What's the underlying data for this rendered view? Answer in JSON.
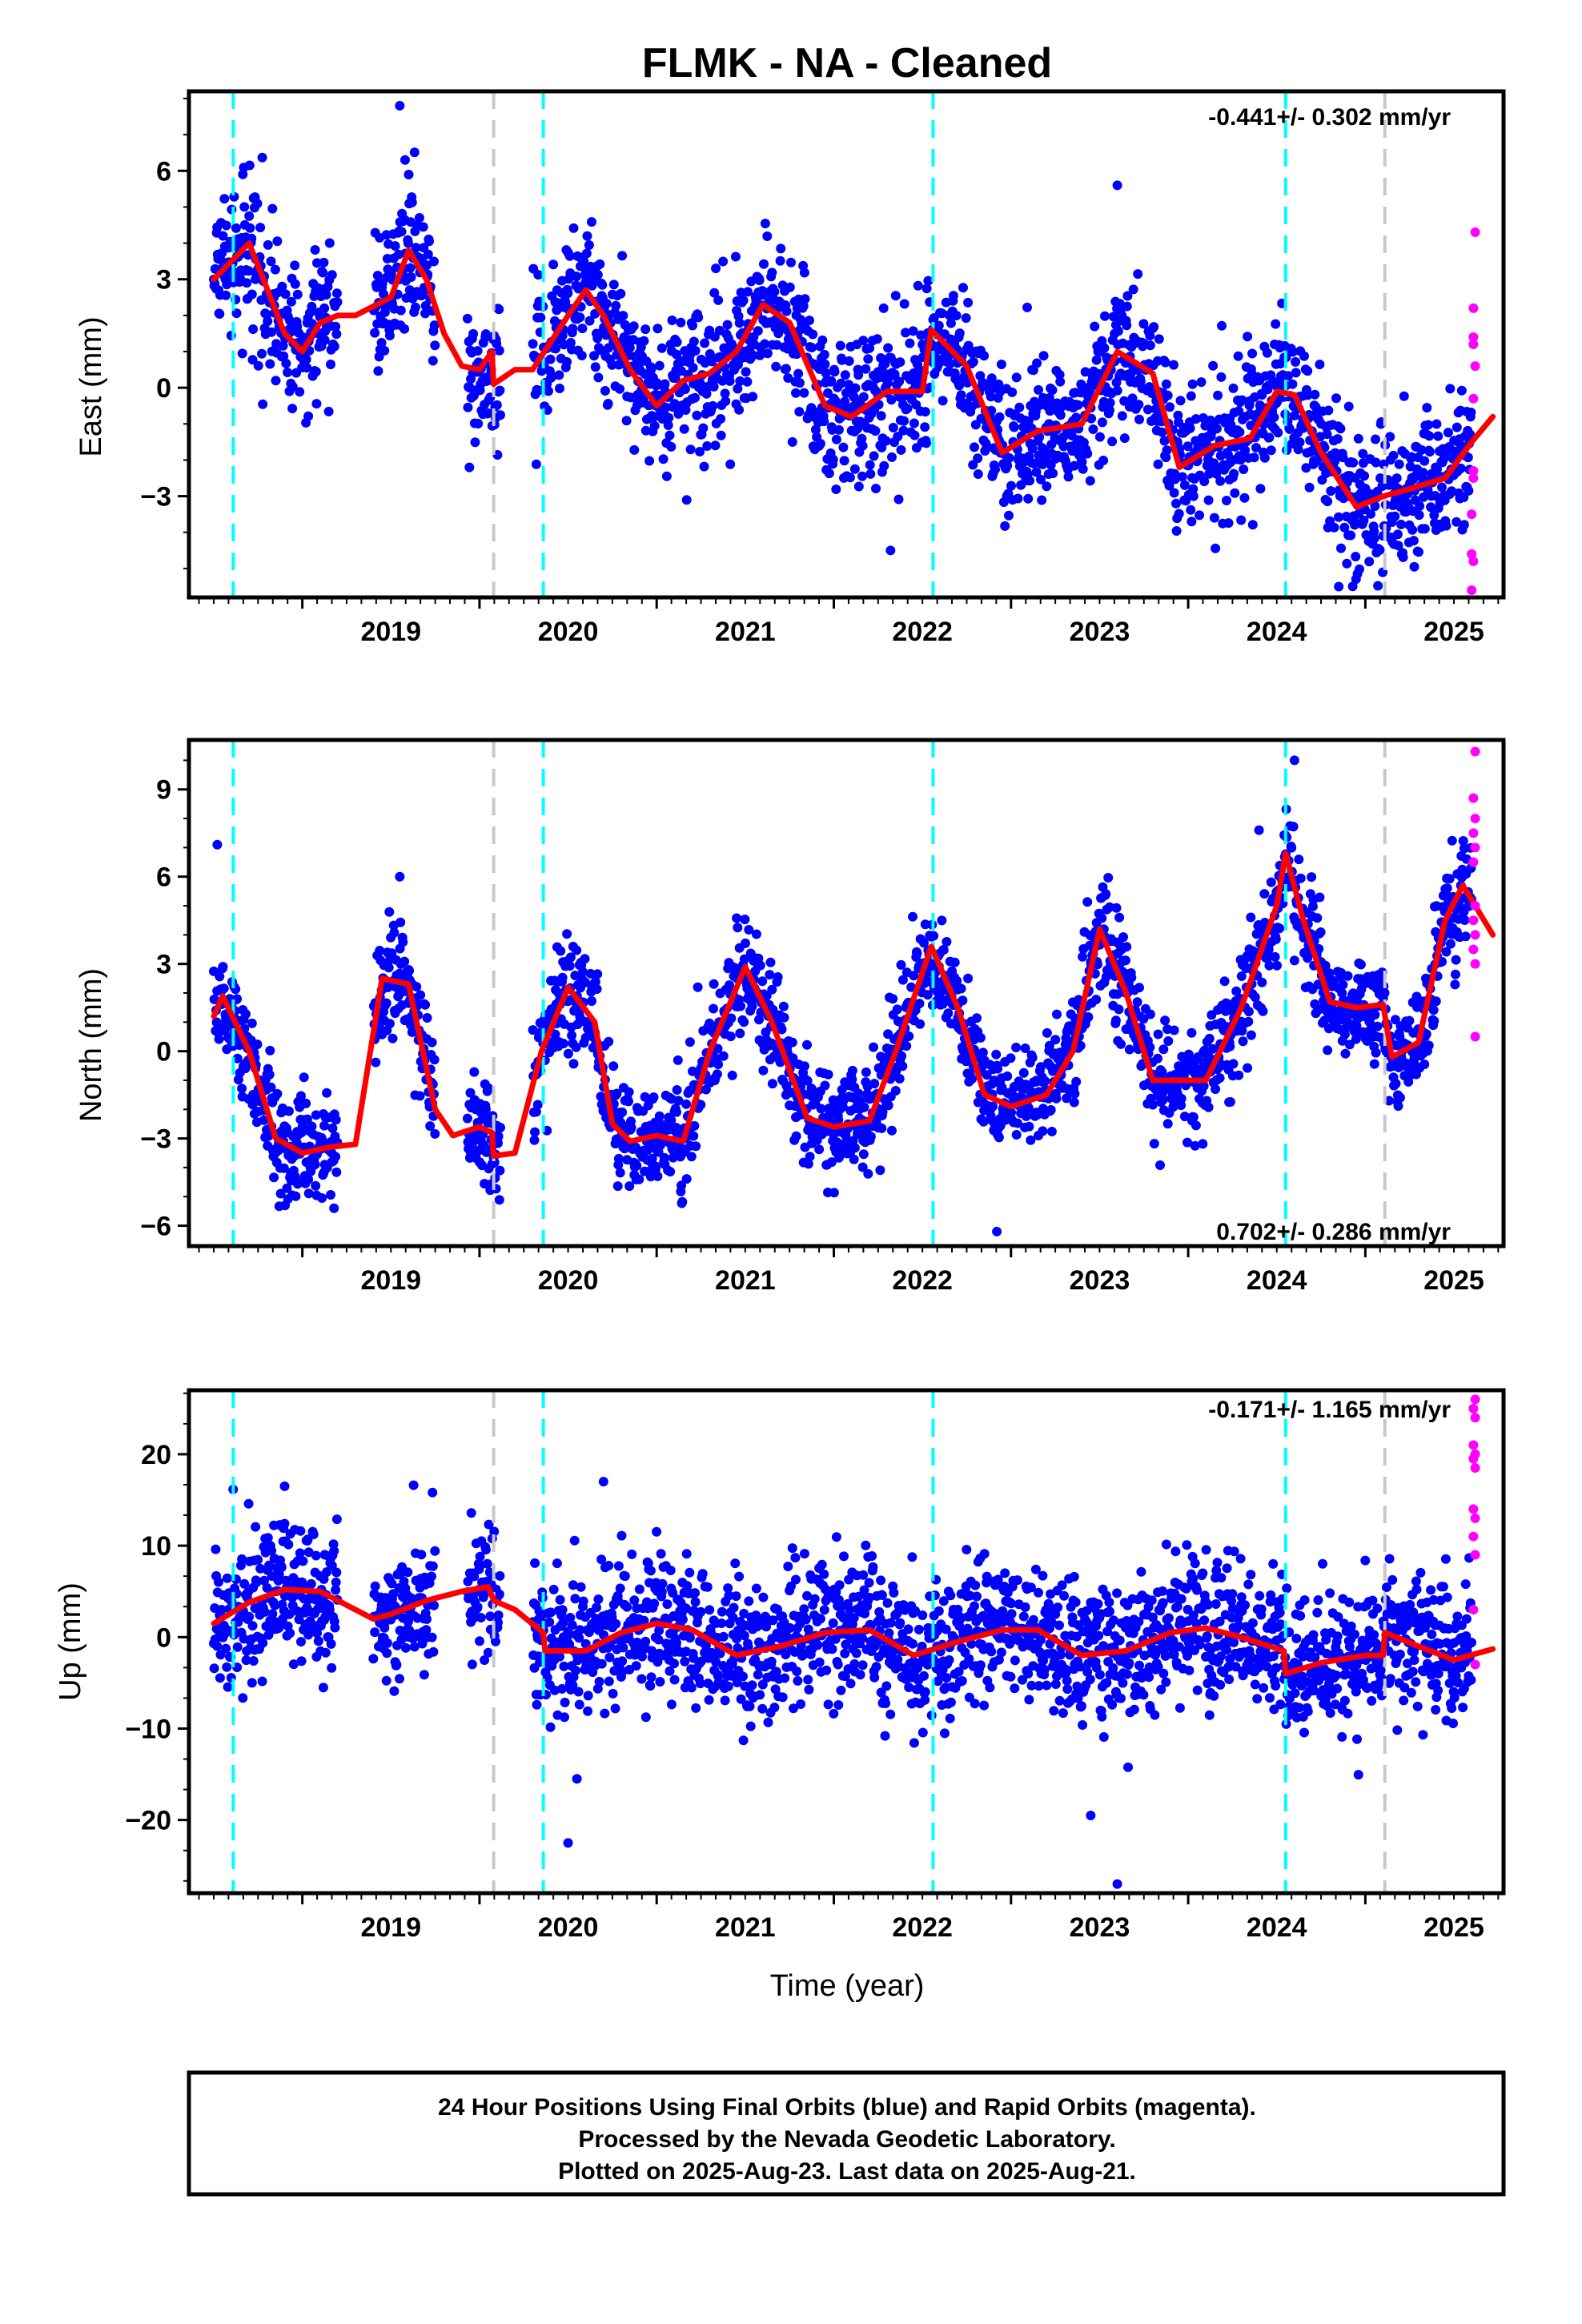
{
  "title": "FLMK  - NA - Cleaned",
  "x_axis_label": "Time (year)",
  "year_ticks": [
    "2019",
    "2020",
    "2021",
    "2022",
    "2023",
    "2024",
    "2025"
  ],
  "footer": {
    "line1": "24 Hour Positions Using Final Orbits (blue) and Rapid Orbits (magenta).",
    "line2": "Processed by the Nevada Geodetic Laboratory.",
    "line3": "Plotted on 2025-Aug-23. Last data on 2025-Aug-21."
  },
  "colors": {
    "final_orbits": "#0000ff",
    "rapid_orbits": "#ff00ff",
    "model_fit": "#ff0000",
    "equipment_change": "#00ffff",
    "earthquake_offset": "#c8c8c8",
    "frame": "#000000"
  },
  "chart_data": [
    {
      "type": "scatter",
      "id": "east",
      "ylabel": "East (mm)",
      "rate_text": "-0.441+/- 0.302 mm/yr",
      "rate_position": "top-right",
      "xlim": [
        2018.36,
        2025.78
      ],
      "ylim": [
        -5.8,
        8.2
      ],
      "yticks": [
        -3,
        0,
        3,
        6
      ],
      "equipment_change_lines": [
        2018.61,
        2020.36,
        2022.56,
        2024.55
      ],
      "other_offset_lines": [
        2020.08,
        2025.11
      ],
      "model_fit": {
        "x": [
          2018.5,
          2018.7,
          2018.9,
          2019.0,
          2019.1,
          2019.2,
          2019.3,
          2019.5,
          2019.6,
          2019.7,
          2019.8,
          2019.9,
          2020.0,
          2020.07,
          2020.08,
          2020.2,
          2020.3,
          2020.5,
          2020.6,
          2020.7,
          2020.85,
          2021.0,
          2021.15,
          2021.3,
          2021.45,
          2021.6,
          2021.75,
          2021.95,
          2022.1,
          2022.3,
          2022.5,
          2022.55,
          2022.75,
          2022.95,
          2023.15,
          2023.4,
          2023.6,
          2023.8,
          2023.95,
          2024.15,
          2024.35,
          2024.5,
          2024.6,
          2024.75,
          2024.95,
          2025.1,
          2025.25,
          2025.45,
          2025.6,
          2025.72
        ],
        "y": [
          3.0,
          4.0,
          1.5,
          1.0,
          1.8,
          2.0,
          2.0,
          2.5,
          3.8,
          3.0,
          1.5,
          0.6,
          0.5,
          1.0,
          0.1,
          0.5,
          0.5,
          2.0,
          2.7,
          2.0,
          0.5,
          -0.5,
          0.2,
          0.4,
          1.0,
          2.3,
          1.8,
          -0.5,
          -0.8,
          -0.1,
          -0.1,
          1.6,
          0.6,
          -1.8,
          -1.2,
          -1.0,
          1.0,
          0.4,
          -2.2,
          -1.6,
          -1.4,
          -0.1,
          -0.2,
          -1.8,
          -3.3,
          -3.0,
          -2.8,
          -2.5,
          -1.5,
          -0.8
        ]
      },
      "final_orbit_outliers": [
        {
          "x": 2019.55,
          "y": 7.8
        },
        {
          "x": 2019.58,
          "y": 6.3
        },
        {
          "x": 2022.32,
          "y": -4.5
        },
        {
          "x": 2024.85,
          "y": -5.5
        },
        {
          "x": 2023.6,
          "y": 5.6
        }
      ],
      "rapid_orbit_points": [
        {
          "x": 2025.62,
          "y": 4.3
        },
        {
          "x": 2025.61,
          "y": 2.2
        },
        {
          "x": 2025.61,
          "y": 1.4
        },
        {
          "x": 2025.61,
          "y": 1.2
        },
        {
          "x": 2025.62,
          "y": 0.6
        },
        {
          "x": 2025.61,
          "y": -0.3
        },
        {
          "x": 2025.61,
          "y": -2.3
        },
        {
          "x": 2025.61,
          "y": -2.5
        },
        {
          "x": 2025.6,
          "y": -3.5
        },
        {
          "x": 2025.6,
          "y": -4.6
        },
        {
          "x": 2025.61,
          "y": -4.8
        },
        {
          "x": 2025.6,
          "y": -5.6
        }
      ]
    },
    {
      "type": "scatter",
      "id": "north",
      "ylabel": "North (mm)",
      "rate_text": "0.702+/- 0.286 mm/yr",
      "rate_position": "bottom-right",
      "xlim": [
        2018.36,
        2025.78
      ],
      "ylim": [
        -6.7,
        10.7
      ],
      "yticks": [
        -6,
        -3,
        0,
        3,
        6,
        9
      ],
      "equipment_change_lines": [
        2018.61,
        2020.36,
        2022.56,
        2024.55
      ],
      "other_offset_lines": [
        2020.08,
        2025.11
      ],
      "model_fit": {
        "x": [
          2018.5,
          2018.55,
          2018.7,
          2018.85,
          2019.0,
          2019.15,
          2019.3,
          2019.45,
          2019.6,
          2019.75,
          2019.85,
          2020.0,
          2020.07,
          2020.08,
          2020.2,
          2020.35,
          2020.5,
          2020.65,
          2020.75,
          2020.85,
          2021.0,
          2021.15,
          2021.3,
          2021.5,
          2021.65,
          2021.85,
          2022.0,
          2022.2,
          2022.35,
          2022.55,
          2022.7,
          2022.85,
          2023.0,
          2023.2,
          2023.35,
          2023.5,
          2023.65,
          2023.8,
          2023.95,
          2024.1,
          2024.3,
          2024.5,
          2024.55,
          2024.65,
          2024.8,
          2024.95,
          2025.1,
          2025.15,
          2025.3,
          2025.45,
          2025.55,
          2025.72
        ],
        "y": [
          1.2,
          1.9,
          0.0,
          -3.0,
          -3.5,
          -3.3,
          -3.2,
          2.5,
          2.3,
          -2.0,
          -2.9,
          -2.6,
          -2.8,
          -3.6,
          -3.5,
          0.0,
          2.2,
          1.0,
          -2.5,
          -3.1,
          -2.9,
          -3.1,
          0.0,
          2.9,
          1.0,
          -2.3,
          -2.6,
          -2.4,
          0.0,
          3.6,
          1.5,
          -1.5,
          -1.9,
          -1.5,
          0.0,
          4.2,
          2.0,
          -1.0,
          -1.0,
          -1.0,
          1.5,
          5.0,
          6.8,
          4.5,
          1.7,
          1.5,
          1.6,
          -0.2,
          0.3,
          4.5,
          5.7,
          4.0
        ]
      },
      "final_orbit_outliers": [
        {
          "x": 2018.52,
          "y": 7.1
        },
        {
          "x": 2019.55,
          "y": 6.0
        },
        {
          "x": 2022.92,
          "y": -6.2
        },
        {
          "x": 2024.6,
          "y": 10.0
        },
        {
          "x": 2024.4,
          "y": 7.6
        }
      ],
      "rapid_orbit_points": [
        {
          "x": 2025.62,
          "y": 10.3
        },
        {
          "x": 2025.61,
          "y": 8.7
        },
        {
          "x": 2025.62,
          "y": 8.0
        },
        {
          "x": 2025.61,
          "y": 7.5
        },
        {
          "x": 2025.62,
          "y": 7.0
        },
        {
          "x": 2025.61,
          "y": 6.5
        },
        {
          "x": 2025.62,
          "y": 5.0
        },
        {
          "x": 2025.61,
          "y": 4.5
        },
        {
          "x": 2025.62,
          "y": 4.0
        },
        {
          "x": 2025.61,
          "y": 3.5
        },
        {
          "x": 2025.62,
          "y": 3.0
        },
        {
          "x": 2025.62,
          "y": 0.5
        }
      ]
    },
    {
      "type": "scatter",
      "id": "up",
      "ylabel": "Up (mm)",
      "rate_text": "-0.171+/- 1.165 mm/yr",
      "rate_position": "top-right",
      "xlim": [
        2018.36,
        2025.78
      ],
      "ylim": [
        -28,
        27
      ],
      "yticks": [
        -20,
        -10,
        0,
        10,
        20
      ],
      "equipment_change_lines": [
        2018.61,
        2020.36,
        2022.56,
        2024.55
      ],
      "other_offset_lines": [
        2020.08,
        2025.11
      ],
      "model_fit": {
        "x": [
          2018.5,
          2018.7,
          2018.9,
          2019.1,
          2019.3,
          2019.4,
          2019.5,
          2019.7,
          2019.9,
          2020.05,
          2020.08,
          2020.2,
          2020.36,
          2020.37,
          2020.6,
          2020.8,
          2021.0,
          2021.2,
          2021.45,
          2021.7,
          2021.95,
          2022.2,
          2022.45,
          2022.7,
          2022.95,
          2023.15,
          2023.4,
          2023.65,
          2023.9,
          2024.1,
          2024.3,
          2024.54,
          2024.55,
          2024.75,
          2025.0,
          2025.1,
          2025.11,
          2025.3,
          2025.5,
          2025.72
        ],
        "y": [
          1.5,
          3.8,
          5.2,
          5.0,
          3.0,
          2.0,
          2.5,
          4.0,
          5.0,
          5.5,
          4.0,
          3.0,
          0.5,
          -1.5,
          -1.5,
          0.5,
          1.5,
          0.8,
          -2.0,
          -1.0,
          0.5,
          0.8,
          -2.0,
          -0.5,
          0.8,
          0.8,
          -2.0,
          -1.5,
          0.5,
          1.0,
          0.0,
          -1.5,
          -4.0,
          -2.8,
          -2.0,
          -2.0,
          0.5,
          -1.0,
          -2.5,
          -1.3
        ]
      },
      "final_orbit_outliers": [
        {
          "x": 2020.5,
          "y": -22.5
        },
        {
          "x": 2020.55,
          "y": -15.5
        },
        {
          "x": 2023.6,
          "y": -27.0
        },
        {
          "x": 2023.45,
          "y": -19.5
        },
        {
          "x": 2020.7,
          "y": 17.0
        },
        {
          "x": 2018.9,
          "y": 16.5
        }
      ],
      "rapid_orbit_points": [
        {
          "x": 2025.62,
          "y": 26.0
        },
        {
          "x": 2025.61,
          "y": 25.0
        },
        {
          "x": 2025.62,
          "y": 24.0
        },
        {
          "x": 2025.61,
          "y": 21.0
        },
        {
          "x": 2025.62,
          "y": 20.0
        },
        {
          "x": 2025.61,
          "y": 19.5
        },
        {
          "x": 2025.62,
          "y": 18.5
        },
        {
          "x": 2025.61,
          "y": 14.0
        },
        {
          "x": 2025.62,
          "y": 13.0
        },
        {
          "x": 2025.61,
          "y": 11.0
        },
        {
          "x": 2025.62,
          "y": 9.0
        },
        {
          "x": 2025.61,
          "y": 3.0
        },
        {
          "x": 2025.62,
          "y": -3.0
        }
      ]
    }
  ]
}
